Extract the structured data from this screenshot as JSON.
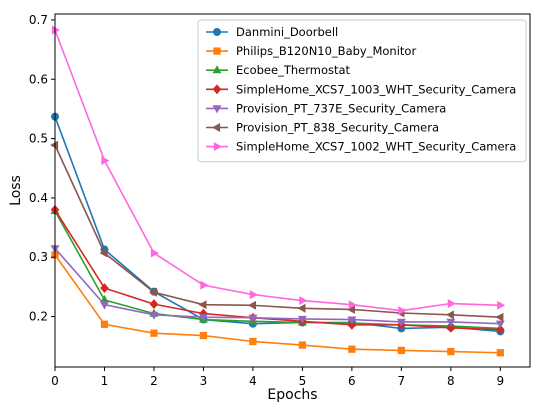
{
  "chart_data": {
    "type": "line",
    "title": "",
    "xlabel": "Epochs",
    "ylabel": "Loss",
    "x": [
      0,
      1,
      2,
      3,
      4,
      5,
      6,
      7,
      8,
      9
    ],
    "xlim": [
      0,
      9.6
    ],
    "ylim": [
      0.115,
      0.71
    ],
    "xticks": [
      "0",
      "1",
      "2",
      "3",
      "4",
      "5",
      "6",
      "7",
      "8",
      "9"
    ],
    "yticks": [
      0.2,
      0.3,
      0.4,
      0.5,
      0.6,
      0.7
    ],
    "ytick_labels": [
      "0.2",
      "0.3",
      "0.4",
      "0.5",
      "0.6",
      "0.7"
    ],
    "grid": false,
    "legend_position": "top-right",
    "series": [
      {
        "name": "Danmini_Doorbell",
        "color": "#1f77b4",
        "marker": "circle",
        "values": [
          0.537,
          0.313,
          0.242,
          0.195,
          0.188,
          0.19,
          0.19,
          0.18,
          0.182,
          0.175
        ]
      },
      {
        "name": "Philips_B120N10_Baby_Monitor",
        "color": "#ff7f0e",
        "marker": "square",
        "values": [
          0.304,
          0.187,
          0.172,
          0.168,
          0.158,
          0.152,
          0.145,
          0.143,
          0.141,
          0.139
        ]
      },
      {
        "name": "Ecobee_Thermostat",
        "color": "#2ca02c",
        "marker": "triangle-up",
        "values": [
          0.378,
          0.228,
          0.205,
          0.195,
          0.192,
          0.19,
          0.189,
          0.186,
          0.184,
          0.18
        ]
      },
      {
        "name": "SimpleHome_XCS7_1003_WHT_Security_Camera",
        "color": "#d62728",
        "marker": "diamond",
        "values": [
          0.38,
          0.248,
          0.221,
          0.205,
          0.198,
          0.192,
          0.186,
          0.186,
          0.181,
          0.178
        ]
      },
      {
        "name": "Provision_PT_737E_Security_Camera",
        "color": "#9467bd",
        "marker": "triangle-down",
        "values": [
          0.315,
          0.22,
          0.203,
          0.199,
          0.198,
          0.196,
          0.195,
          0.191,
          0.191,
          0.188
        ]
      },
      {
        "name": "Provision_PT_838_Security_Camera",
        "color": "#8c564b",
        "marker": "triangle-left",
        "values": [
          0.489,
          0.307,
          0.241,
          0.22,
          0.219,
          0.214,
          0.212,
          0.206,
          0.203,
          0.199
        ]
      },
      {
        "name": "SimpleHome_XCS7_1002_WHT_Security_Camera",
        "color": "#ff66e0",
        "marker": "triangle-right",
        "values": [
          0.683,
          0.463,
          0.307,
          0.253,
          0.237,
          0.227,
          0.22,
          0.21,
          0.222,
          0.219
        ]
      }
    ]
  }
}
